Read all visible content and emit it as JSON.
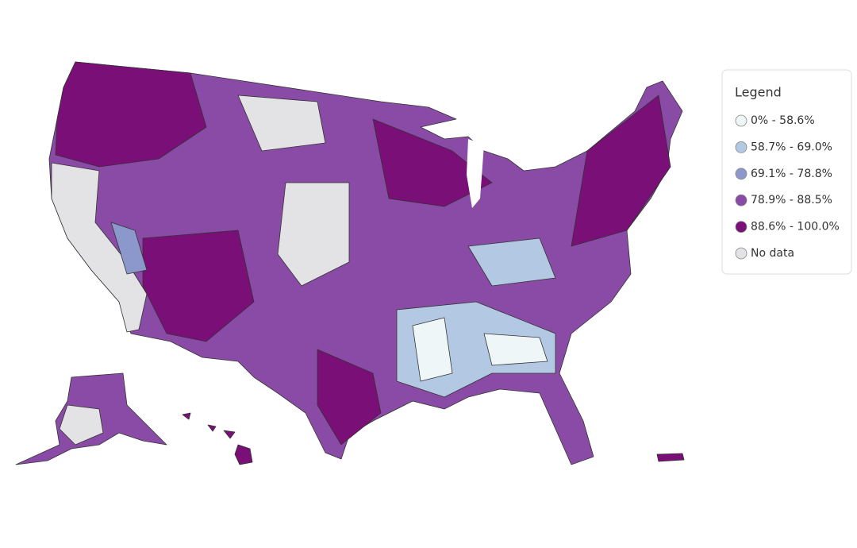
{
  "legend": {
    "title": "Legend",
    "items": [
      {
        "label": "0% - 58.6%",
        "color": "#eef6f8"
      },
      {
        "label": "58.7% - 69.0%",
        "color": "#b3c8e2"
      },
      {
        "label": "69.1% - 78.8%",
        "color": "#8c97cb"
      },
      {
        "label": "78.9% - 88.5%",
        "color": "#8a4ba6"
      },
      {
        "label": "88.6% - 100.0%",
        "color": "#7a0f78"
      },
      {
        "label": "No data",
        "color": "#e3e3e6"
      }
    ]
  }
}
